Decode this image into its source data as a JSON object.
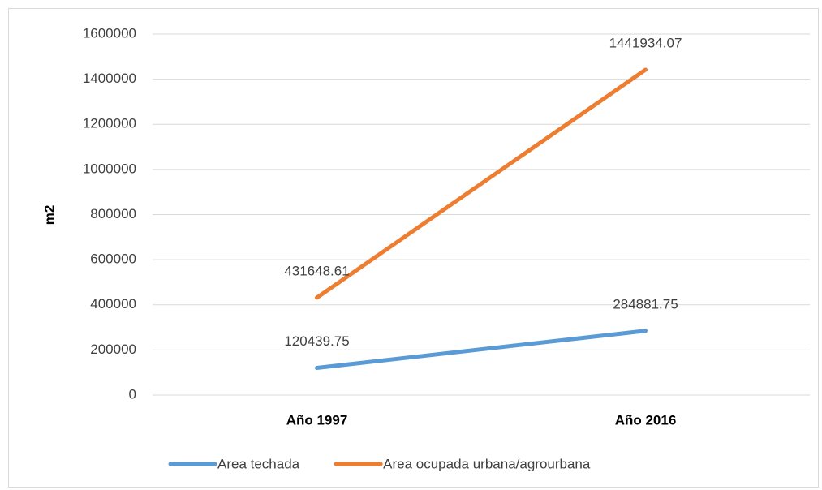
{
  "chart_data": {
    "type": "line",
    "y_label": "m2",
    "categories": [
      "Año 1997",
      "Año 2016"
    ],
    "series": [
      {
        "name": "Area techada",
        "color": "#5b9bd5",
        "values": [
          120439.75,
          284881.75
        ]
      },
      {
        "name": "Area ocupada urbana/agrourbana",
        "color": "#ed7d31",
        "values": [
          431648.61,
          1441934.07
        ]
      }
    ],
    "ylim": [
      0,
      1600000
    ],
    "yticks": [
      0,
      200000,
      400000,
      600000,
      800000,
      1000000,
      1200000,
      1400000,
      1600000
    ],
    "grid": true,
    "legend": "bottom"
  }
}
